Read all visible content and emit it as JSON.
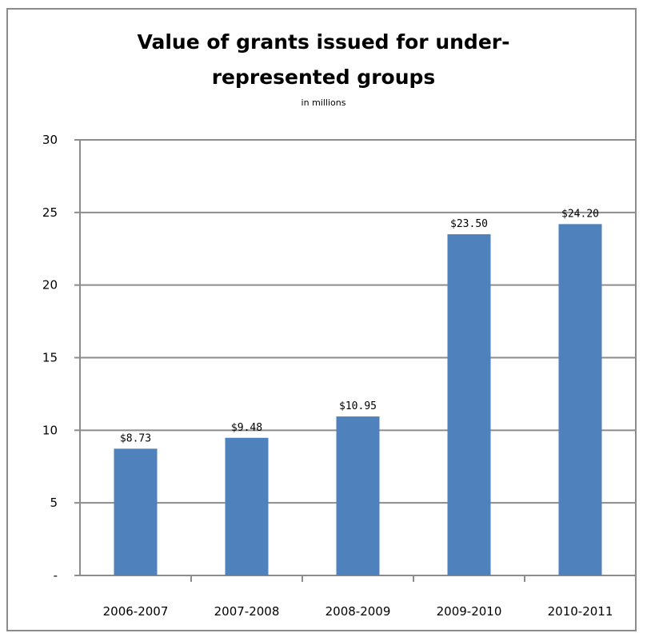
{
  "chart_data": {
    "type": "bar",
    "title_line1": "Value of grants issued for under-",
    "title_line2": "represented groups",
    "subtitle": "in millions",
    "xlabel": "",
    "ylabel": "",
    "categories": [
      "2006-2007",
      "2007-2008",
      "2008-2009",
      "2009-2010",
      "2010-2011"
    ],
    "values": [
      8.73,
      9.48,
      10.95,
      23.5,
      24.2
    ],
    "value_labels": [
      "$8.73",
      "$9.48",
      "$10.95",
      "$23.50",
      "$24.20"
    ],
    "ylim": [
      0,
      30
    ],
    "yticks": [
      0,
      5,
      10,
      15,
      20,
      25,
      30
    ],
    "ytick_labels": [
      "-",
      "5",
      "10",
      "15",
      "20",
      "25",
      "30"
    ],
    "grid": true,
    "bar_color": "#4f81bd",
    "grid_color": "#8c8c8c"
  }
}
